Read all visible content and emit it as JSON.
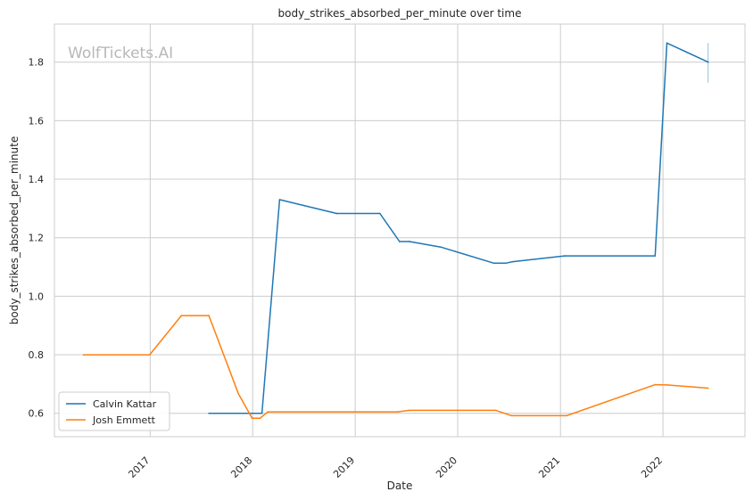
{
  "chart_data": {
    "type": "line",
    "title": "body_strikes_absorbed_per_minute over time",
    "xlabel": "Date",
    "ylabel": "body_strikes_absorbed_per_minute",
    "watermark": "WolfTickets.AI",
    "x_tick_labels": [
      "2017",
      "2018",
      "2019",
      "2020",
      "2021",
      "2022"
    ],
    "y_ticks": [
      0.6,
      0.8,
      1.0,
      1.2,
      1.4,
      1.6,
      1.8
    ],
    "y_tick_labels": [
      "0.6",
      "0.8",
      "1.0",
      "1.2",
      "1.4",
      "1.6",
      "1.8"
    ],
    "xlim": [
      "2016-01-26",
      "2022-10-20"
    ],
    "ylim": [
      0.52,
      1.93
    ],
    "grid": true,
    "legend_position": "lower-left",
    "series": [
      {
        "name": "Calvin Kattar",
        "color": "#1f77b4",
        "points": [
          [
            "2017-07-29",
            0.6
          ],
          [
            "2018-02-03",
            0.6
          ],
          [
            "2018-04-07",
            1.33
          ],
          [
            "2018-10-27",
            1.283
          ],
          [
            "2019-03-30",
            1.283
          ],
          [
            "2019-06-08",
            1.187
          ],
          [
            "2019-07-13",
            1.187
          ],
          [
            "2019-11-02",
            1.168
          ],
          [
            "2020-05-09",
            1.113
          ],
          [
            "2020-06-20",
            1.113
          ],
          [
            "2020-07-15",
            1.118
          ],
          [
            "2021-01-16",
            1.138
          ],
          [
            "2021-12-04",
            1.138
          ],
          [
            "2022-01-15",
            1.865
          ],
          [
            "2022-06-11",
            1.8
          ]
        ],
        "error_bar": {
          "x": "2022-06-11",
          "low": 1.73,
          "high": 1.865
        }
      },
      {
        "name": "Josh Emmett",
        "color": "#ff7f0e",
        "points": [
          [
            "2016-05-08",
            0.8
          ],
          [
            "2016-12-30",
            0.8
          ],
          [
            "2017-04-22",
            0.934
          ],
          [
            "2017-07-29",
            0.934
          ],
          [
            "2017-11-11",
            0.667
          ],
          [
            "2017-12-30",
            0.583
          ],
          [
            "2018-01-27",
            0.583
          ],
          [
            "2018-02-24",
            0.605
          ],
          [
            "2019-06-01",
            0.605
          ],
          [
            "2019-07-13",
            0.61
          ],
          [
            "2020-05-16",
            0.61
          ],
          [
            "2020-07-11",
            0.592
          ],
          [
            "2021-01-23",
            0.592
          ],
          [
            "2021-12-04",
            0.698
          ],
          [
            "2022-01-15",
            0.697
          ],
          [
            "2022-06-11",
            0.686
          ]
        ]
      }
    ]
  }
}
